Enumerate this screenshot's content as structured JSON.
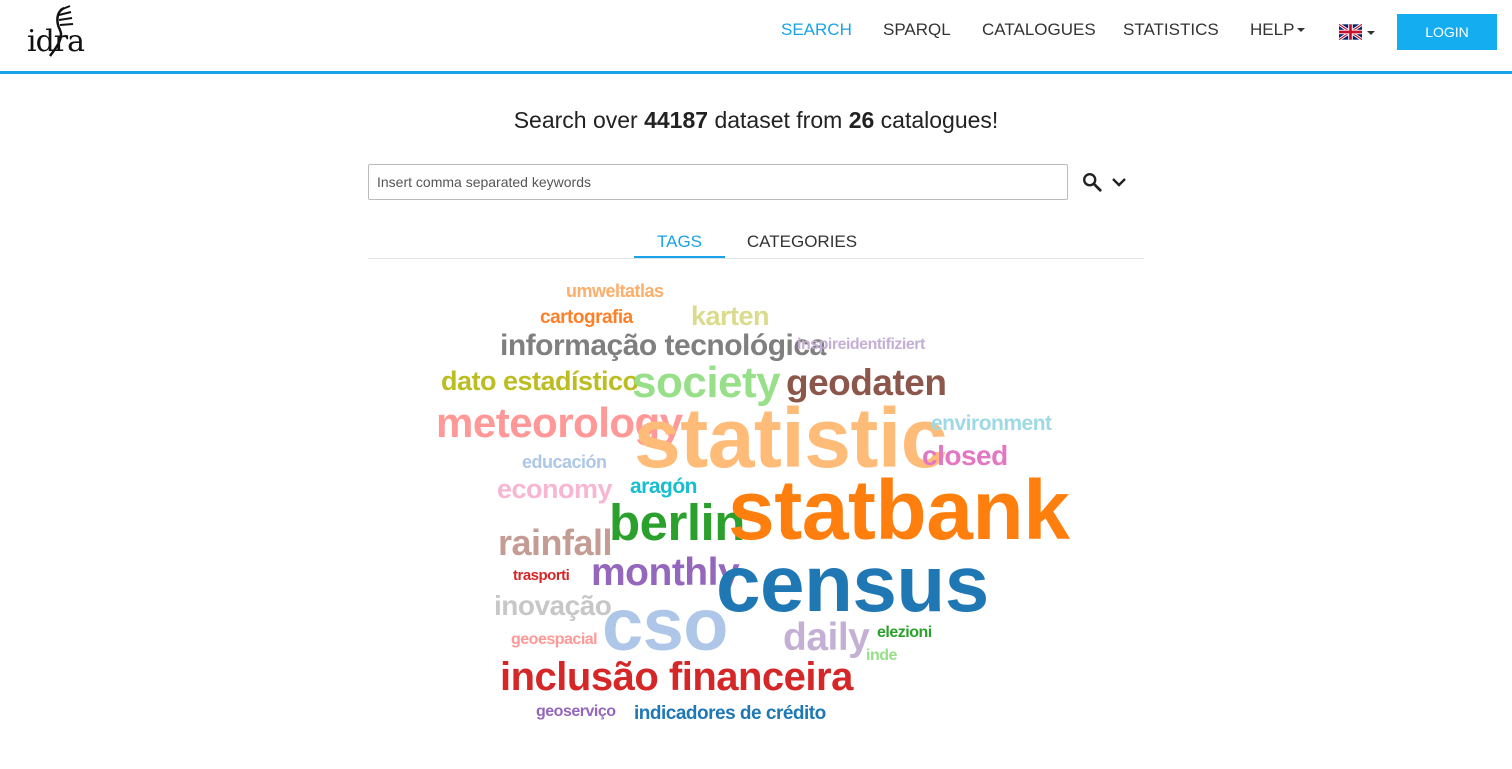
{
  "header": {
    "logo_text": "idra",
    "nav": [
      {
        "label": "SEARCH",
        "active": true
      },
      {
        "label": "SPARQL"
      },
      {
        "label": "CATALOGUES"
      },
      {
        "label": "STATISTICS"
      },
      {
        "label": "HELP",
        "dropdown": true
      }
    ],
    "language_icon": "uk-flag-icon",
    "login_label": "LOGIN"
  },
  "main": {
    "headline": {
      "prefix": "Search over",
      "dataset_count": "44187",
      "middle": "dataset from",
      "catalogue_count": "26",
      "suffix": "catalogues!"
    },
    "search": {
      "placeholder": "Insert comma separated keywords",
      "value": "",
      "icons": [
        "search-icon",
        "chevron-down-icon"
      ]
    },
    "tabs": [
      {
        "label": "TAGS",
        "active": true
      },
      {
        "label": "CATEGORIES"
      }
    ]
  },
  "colors": {
    "accent": "#1aa3e8",
    "login_bg": "#14aef0"
  },
  "tag_cloud": [
    {
      "text": "umweltatlas",
      "color": "#fdae6b"
    },
    {
      "text": "cartografia",
      "color": "#fd7f28"
    },
    {
      "text": "karten",
      "color": "#dbdb8d"
    },
    {
      "text": "informação tecnológica",
      "color": "#7f7f7f"
    },
    {
      "text": "inspireidentifiziert",
      "color": "#c5b0d5"
    },
    {
      "text": "dato estadístico",
      "color": "#bcbd22"
    },
    {
      "text": "society",
      "color": "#98df8a"
    },
    {
      "text": "geodaten",
      "color": "#8c564b"
    },
    {
      "text": "meteorology",
      "color": "#ff9896"
    },
    {
      "text": "statistic",
      "color": "#ffbb78"
    },
    {
      "text": "environment",
      "color": "#9edae5"
    },
    {
      "text": "educación",
      "color": "#aec7e8"
    },
    {
      "text": "closed",
      "color": "#e377c2"
    },
    {
      "text": "economy",
      "color": "#f7b6d2"
    },
    {
      "text": "aragón",
      "color": "#17becf"
    },
    {
      "text": "berlin",
      "color": "#2ca02c"
    },
    {
      "text": "statbank",
      "color": "#ff7f0e"
    },
    {
      "text": "rainfall",
      "color": "#c49c94"
    },
    {
      "text": "trasporti",
      "color": "#d62728"
    },
    {
      "text": "monthly",
      "color": "#9467bd"
    },
    {
      "text": "census",
      "color": "#1f77b4"
    },
    {
      "text": "inovação",
      "color": "#c7c7c7"
    },
    {
      "text": "cso",
      "color": "#aec7e8"
    },
    {
      "text": "daily",
      "color": "#c5b0d5"
    },
    {
      "text": "geoespacial",
      "color": "#ff9896"
    },
    {
      "text": "elezioni",
      "color": "#2ca02c"
    },
    {
      "text": "inde",
      "color": "#98df8a"
    },
    {
      "text": "inclusão financeira",
      "color": "#d62728"
    },
    {
      "text": "geoserviço",
      "color": "#9467bd"
    },
    {
      "text": "indicadores de crédito",
      "color": "#1f77b4"
    }
  ]
}
